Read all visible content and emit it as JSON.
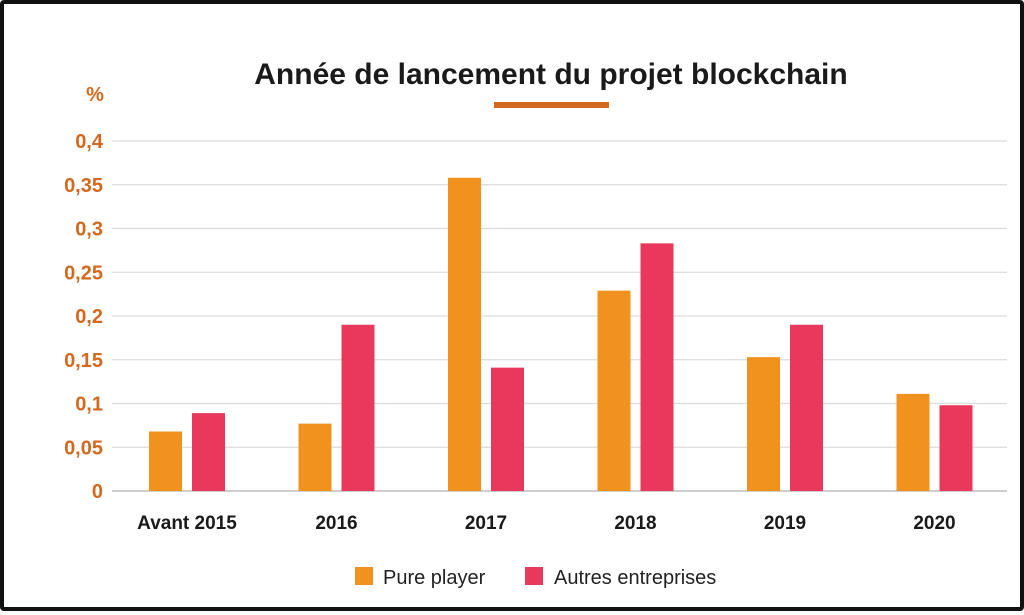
{
  "chart_data": {
    "type": "bar",
    "title": "Année de lancement du projet blockchain",
    "ylabel": "%",
    "xlabel": "",
    "ylim": [
      0,
      0.4
    ],
    "yticks": [
      0,
      0.05,
      0.1,
      0.15,
      0.2,
      0.25,
      0.3,
      0.35,
      0.4
    ],
    "ytick_labels": [
      "0",
      "0,05",
      "0,1",
      "0,15",
      "0,2",
      "0,25",
      "0,3",
      "0,35",
      "0,4"
    ],
    "grid": true,
    "legend_position": "bottom",
    "categories": [
      "Avant 2015",
      "2016",
      "2017",
      "2018",
      "2019",
      "2020"
    ],
    "series": [
      {
        "name": "Pure player",
        "color": "#f2921e",
        "values": [
          0.068,
          0.077,
          0.358,
          0.229,
          0.153,
          0.111
        ]
      },
      {
        "name": "Autres entreprises",
        "color": "#e8385c",
        "values": [
          0.089,
          0.19,
          0.141,
          0.283,
          0.19,
          0.098
        ]
      }
    ],
    "accent_color": "#d2691e",
    "axis_label_color": "#d2691e"
  }
}
